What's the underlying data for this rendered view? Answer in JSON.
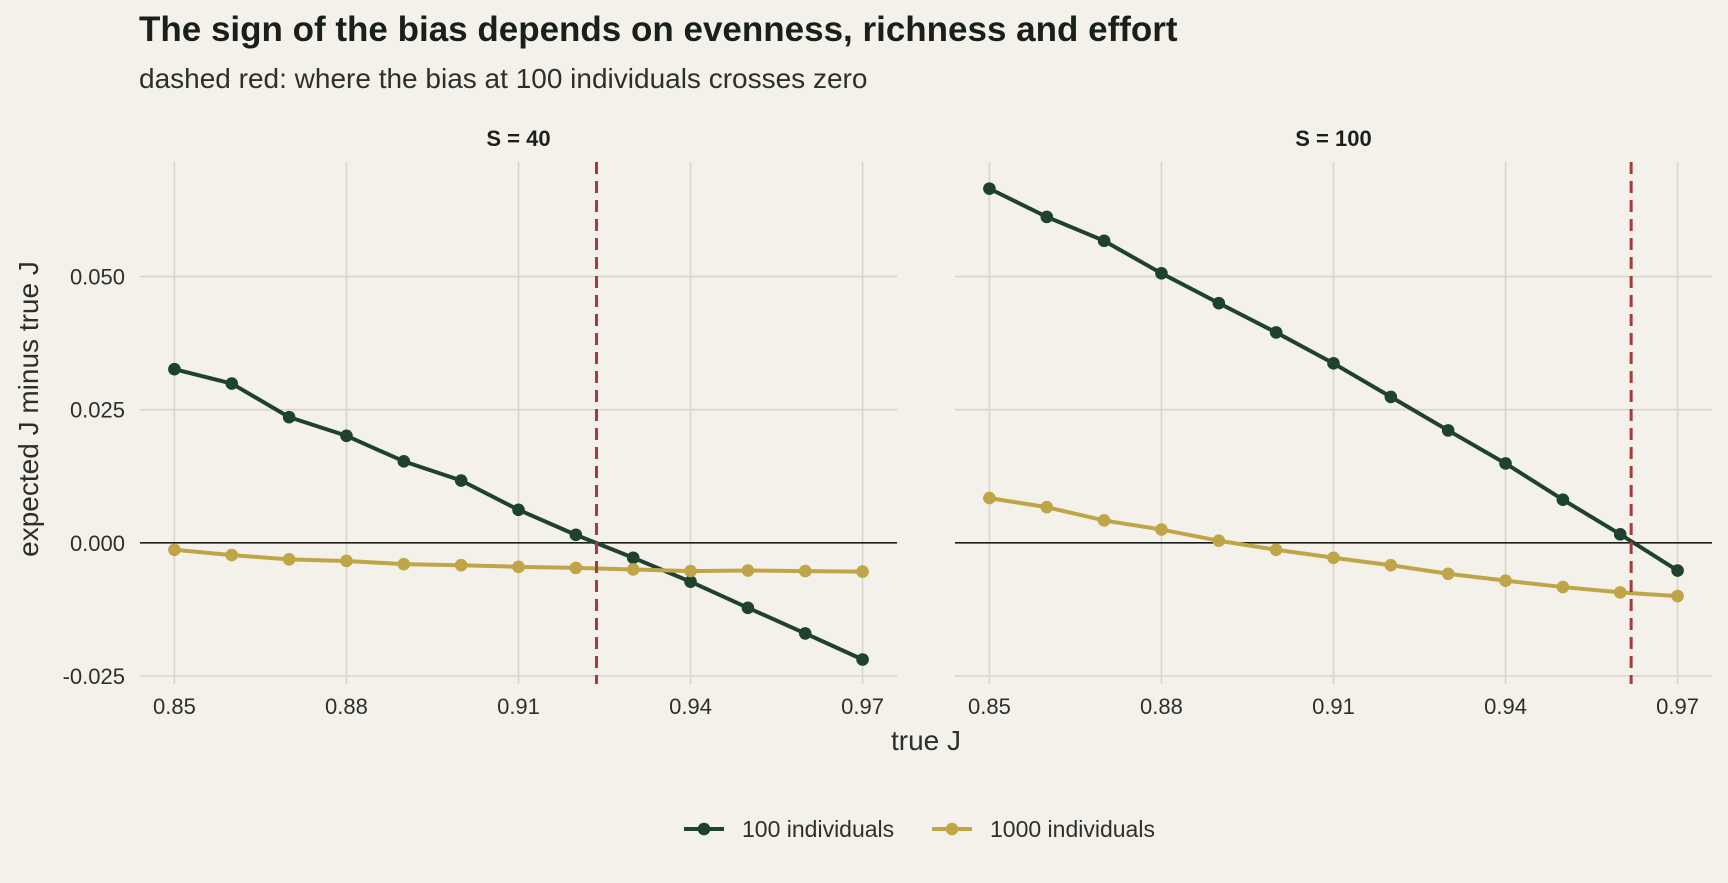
{
  "title": "The sign of the bias depends on evenness, richness and effort",
  "subtitle": "dashed red: where the bias at 100 individuals crosses zero",
  "colors": {
    "background": "#f3f1ea",
    "grid": "#d8d6c8",
    "zero_line": "#1b1f1c",
    "crossing_line": "#a83a3a",
    "series_100": "#1f4230",
    "series_1000": "#c0a548"
  },
  "chart_data": {
    "type": "line",
    "xlabel": "true J",
    "ylabel": "expected J minus true J",
    "xlim": [
      0.844,
      0.976
    ],
    "ylim": [
      -0.0265,
      0.0715
    ],
    "x_ticks": [
      0.85,
      0.88,
      0.91,
      0.94,
      0.97
    ],
    "x_tick_labels": [
      "0.85",
      "0.88",
      "0.91",
      "0.94",
      "0.97"
    ],
    "y_ticks": [
      -0.025,
      0,
      0.025,
      0.05
    ],
    "y_tick_labels": [
      "-0.025",
      "0.000",
      "0.025",
      "0.050"
    ],
    "grid": true,
    "legend_position": "bottom",
    "legend": [
      "100 individuals",
      "1000 individuals"
    ],
    "panels": [
      {
        "label": "S = 40",
        "crossing_x": 0.9236,
        "x": [
          0.85,
          0.86,
          0.87,
          0.88,
          0.89,
          0.9,
          0.91,
          0.92,
          0.93,
          0.94,
          0.95,
          0.96,
          0.97
        ],
        "series": [
          {
            "name": "100 individuals",
            "values": [
              0.0326,
              0.0299,
              0.0236,
              0.0201,
              0.0153,
              0.0117,
              0.0062,
              0.0015,
              -0.0028,
              -0.0073,
              -0.0122,
              -0.017,
              -0.0219
            ]
          },
          {
            "name": "1000 individuals",
            "values": [
              -0.0013,
              -0.0023,
              -0.0031,
              -0.0034,
              -0.004,
              -0.0042,
              -0.0045,
              -0.0047,
              -0.005,
              -0.0053,
              -0.0052,
              -0.0053,
              -0.0054
            ]
          }
        ]
      },
      {
        "label": "S = 100",
        "crossing_x": 0.9619,
        "x": [
          0.85,
          0.86,
          0.87,
          0.88,
          0.89,
          0.9,
          0.91,
          0.92,
          0.93,
          0.94,
          0.95,
          0.96,
          0.97
        ],
        "series": [
          {
            "name": "100 individuals",
            "values": [
              0.0665,
              0.0612,
              0.0567,
              0.0506,
              0.045,
              0.0395,
              0.0337,
              0.0274,
              0.0211,
              0.0149,
              0.0081,
              0.0016,
              -0.0052
            ]
          },
          {
            "name": "1000 individuals",
            "values": [
              0.0084,
              0.0067,
              0.0042,
              0.0025,
              0.0004,
              -0.0013,
              -0.0028,
              -0.0042,
              -0.0058,
              -0.0071,
              -0.0083,
              -0.0093,
              -0.01
            ]
          }
        ]
      }
    ]
  }
}
